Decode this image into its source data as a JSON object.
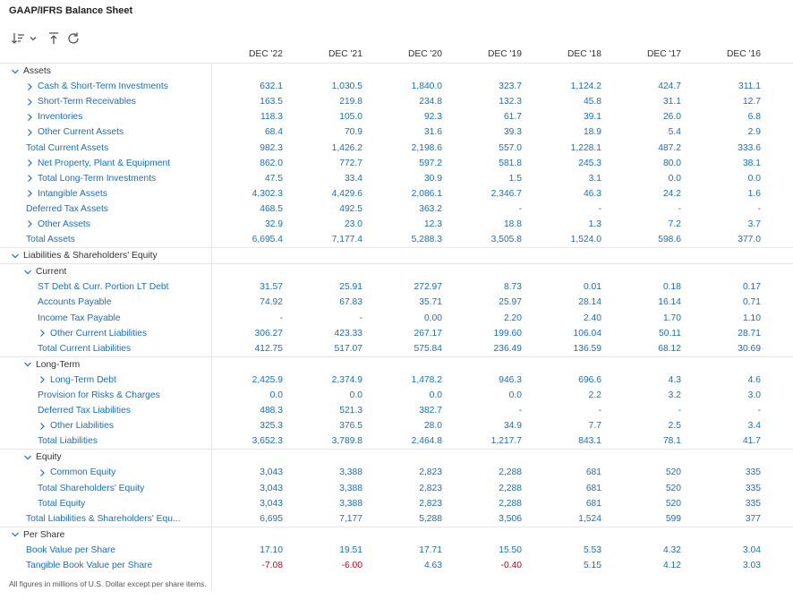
{
  "title": "GAAP/IFRS Balance Sheet",
  "footer": "All figures in millions of U.S. Dollar except per share items.",
  "columns": [
    "DEC '22",
    "DEC '21",
    "DEC '20",
    "DEC '19",
    "DEC '18",
    "DEC '17",
    "DEC '16"
  ],
  "colors": {
    "link": "#1b6fb8",
    "negative": "#d0021b",
    "text": "#333333",
    "border": "#e6e6e6"
  },
  "rows": [
    {
      "type": "section",
      "label": "Assets",
      "indent": 0,
      "chevron": "down",
      "values": []
    },
    {
      "type": "link",
      "label": "Cash & Short-Term Investments",
      "indent": 1,
      "chevron": "right",
      "values": [
        "632.1",
        "1,030.5",
        "1,840.0",
        "323.7",
        "1,124.2",
        "424.7",
        "311.1"
      ]
    },
    {
      "type": "link",
      "label": "Short-Term Receivables",
      "indent": 1,
      "chevron": "right",
      "values": [
        "163.5",
        "219.8",
        "234.8",
        "132.3",
        "45.8",
        "31.1",
        "12.7"
      ]
    },
    {
      "type": "link",
      "label": "Inventories",
      "indent": 1,
      "chevron": "right",
      "values": [
        "118.3",
        "105.0",
        "92.3",
        "61.7",
        "39.1",
        "26.0",
        "6.8"
      ]
    },
    {
      "type": "link",
      "label": "Other Current Assets",
      "indent": 1,
      "chevron": "right",
      "values": [
        "68.4",
        "70.9",
        "31.6",
        "39.3",
        "18.9",
        "5.4",
        "2.9"
      ]
    },
    {
      "type": "link",
      "label": "Total Current Assets",
      "indent": 0.5,
      "chevron": "",
      "values": [
        "982.3",
        "1,426.2",
        "2,198.6",
        "557.0",
        "1,228.1",
        "487.2",
        "333.6"
      ]
    },
    {
      "type": "link",
      "label": "Net Property, Plant & Equipment",
      "indent": 1,
      "chevron": "right",
      "values": [
        "862.0",
        "772.7",
        "597.2",
        "581.8",
        "245.3",
        "80.0",
        "38.1"
      ]
    },
    {
      "type": "link",
      "label": "Total Long-Term Investments",
      "indent": 1,
      "chevron": "right",
      "values": [
        "47.5",
        "33.4",
        "30.9",
        "1.5",
        "3.1",
        "0.0",
        "0.0"
      ]
    },
    {
      "type": "link",
      "label": "Intangible Assets",
      "indent": 1,
      "chevron": "right",
      "values": [
        "4,302.3",
        "4,429.6",
        "2,086.1",
        "2,346.7",
        "46.3",
        "24.2",
        "1.6"
      ]
    },
    {
      "type": "link",
      "label": "Deferred Tax Assets",
      "indent": 0.5,
      "chevron": "",
      "values": [
        "468.5",
        "492.5",
        "363.2",
        "-",
        "-",
        "-",
        "-"
      ]
    },
    {
      "type": "link",
      "label": "Other Assets",
      "indent": 1,
      "chevron": "right",
      "values": [
        "32.9",
        "23.0",
        "12.3",
        "18.8",
        "1.3",
        "7.2",
        "3.7"
      ]
    },
    {
      "type": "link",
      "label": "Total Assets",
      "indent": 0.5,
      "chevron": "",
      "values": [
        "6,695.4",
        "7,177.4",
        "5,288.3",
        "3,505.8",
        "1,524.0",
        "598.6",
        "377.0"
      ]
    },
    {
      "type": "section",
      "label": "Liabilities & Shareholders' Equity",
      "indent": 0,
      "chevron": "down",
      "values": []
    },
    {
      "type": "section",
      "label": "Current",
      "indent": 1,
      "chevron": "down",
      "values": []
    },
    {
      "type": "link",
      "label": "ST Debt & Curr. Portion LT Debt",
      "indent": 2,
      "chevron": "",
      "values": [
        "31.57",
        "25.91",
        "272.97",
        "8.73",
        "0.01",
        "0.18",
        "0.17"
      ]
    },
    {
      "type": "link",
      "label": "Accounts Payable",
      "indent": 2,
      "chevron": "",
      "values": [
        "74.92",
        "67.83",
        "35.71",
        "25.97",
        "28.14",
        "16.14",
        "0.71"
      ]
    },
    {
      "type": "link",
      "label": "Income Tax Payable",
      "indent": 2,
      "chevron": "",
      "values": [
        "-",
        "-",
        "0.00",
        "2.20",
        "2.40",
        "1.70",
        "1.10"
      ]
    },
    {
      "type": "link",
      "label": "Other Current Liabilities",
      "indent": 2.5,
      "chevron": "right",
      "values": [
        "306.27",
        "423.33",
        "267.17",
        "199.60",
        "106.04",
        "50.11",
        "28.71"
      ]
    },
    {
      "type": "link",
      "label": "Total Current Liabilities",
      "indent": 2,
      "chevron": "",
      "values": [
        "412.75",
        "517.07",
        "575.84",
        "236.49",
        "136.59",
        "68.12",
        "30.69"
      ]
    },
    {
      "type": "section",
      "label": "Long-Term",
      "indent": 1,
      "chevron": "down",
      "values": []
    },
    {
      "type": "link",
      "label": "Long-Term Debt",
      "indent": 2.5,
      "chevron": "right",
      "values": [
        "2,425.9",
        "2,374.9",
        "1,478.2",
        "946.3",
        "696.6",
        "4.3",
        "4.6"
      ]
    },
    {
      "type": "link",
      "label": "Provision for Risks & Charges",
      "indent": 2,
      "chevron": "",
      "values": [
        "0.0",
        "0.0",
        "0.0",
        "0.0",
        "2.2",
        "3.2",
        "3.0"
      ]
    },
    {
      "type": "link",
      "label": "Deferred Tax Liabilities",
      "indent": 2,
      "chevron": "",
      "values": [
        "488.3",
        "521.3",
        "382.7",
        "-",
        "-",
        "-",
        "-"
      ]
    },
    {
      "type": "link",
      "label": "Other Liabilities",
      "indent": 2.5,
      "chevron": "right",
      "values": [
        "325.3",
        "376.5",
        "28.0",
        "34.9",
        "7.7",
        "2.5",
        "3.4"
      ]
    },
    {
      "type": "link",
      "label": "Total Liabilities",
      "indent": 2,
      "chevron": "",
      "values": [
        "3,652.3",
        "3,789.8",
        "2,464.8",
        "1,217.7",
        "843.1",
        "78.1",
        "41.7"
      ]
    },
    {
      "type": "section",
      "label": "Equity",
      "indent": 1,
      "chevron": "down",
      "values": []
    },
    {
      "type": "link",
      "label": "Common Equity",
      "indent": 2.5,
      "chevron": "right",
      "values": [
        "3,043",
        "3,388",
        "2,823",
        "2,288",
        "681",
        "520",
        "335"
      ]
    },
    {
      "type": "link",
      "label": "Total Shareholders' Equity",
      "indent": 2,
      "chevron": "",
      "values": [
        "3,043",
        "3,388",
        "2,823",
        "2,288",
        "681",
        "520",
        "335"
      ]
    },
    {
      "type": "link",
      "label": "Total Equity",
      "indent": 2,
      "chevron": "",
      "values": [
        "3,043",
        "3,388",
        "2,823",
        "2,288",
        "681",
        "520",
        "335"
      ]
    },
    {
      "type": "link",
      "label": "Total Liabilities & Shareholders' Equ...",
      "indent": 0.5,
      "chevron": "",
      "values": [
        "6,695",
        "7,177",
        "5,288",
        "3,506",
        "1,524",
        "599",
        "377"
      ]
    },
    {
      "type": "section",
      "label": "Per Share",
      "indent": 0,
      "chevron": "down",
      "values": []
    },
    {
      "type": "link",
      "label": "Book Value per Share",
      "indent": 0.5,
      "chevron": "",
      "values": [
        "17.10",
        "19.51",
        "17.71",
        "15.50",
        "5.53",
        "4.32",
        "3.04"
      ]
    },
    {
      "type": "link",
      "label": "Tangible Book Value per Share",
      "indent": 0.5,
      "chevron": "",
      "values": [
        "-7.08",
        "-6.00",
        "4.63",
        "-0.40",
        "5.15",
        "4.12",
        "3.03"
      ]
    }
  ]
}
